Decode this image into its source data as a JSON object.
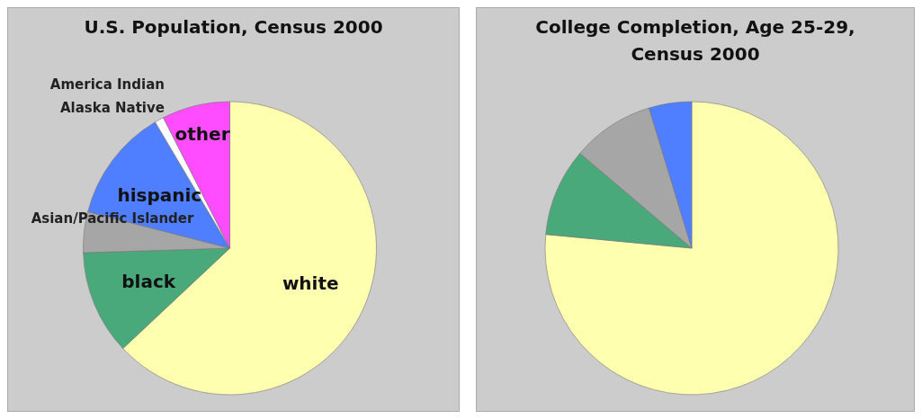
{
  "chart_data": [
    {
      "type": "pie",
      "title": "U.S. Population, Census 2000",
      "categories": [
        "white",
        "black",
        "Asian/Pacific Islander",
        "hispanic",
        "America Indian Alaska Native",
        "other"
      ],
      "values": [
        63,
        11.5,
        4.5,
        12.5,
        1,
        7.5
      ],
      "colors": [
        "#ffffb0",
        "#4aa97a",
        "#a6a6a6",
        "#4f7fff",
        "#ffffff",
        "#ff4cff"
      ]
    },
    {
      "type": "pie",
      "title": "College Completion, Age 25-29, Census 2000",
      "categories": [
        null,
        null,
        null,
        null
      ],
      "values": [
        76.5,
        9.7,
        9.1,
        4.7
      ],
      "colors": [
        "#ffffb0",
        "#4aa97a",
        "#a6a6a6",
        "#4f7fff"
      ]
    }
  ]
}
